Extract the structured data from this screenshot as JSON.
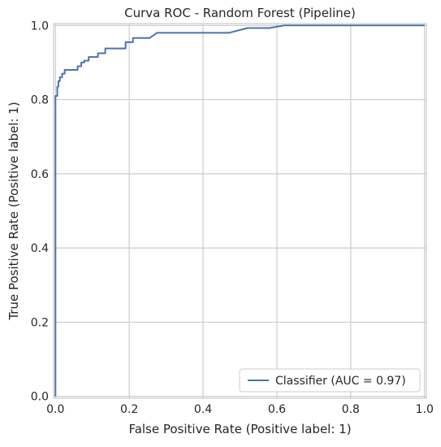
{
  "chart_data": {
    "type": "line",
    "title": "Curva ROC - Random Forest (Pipeline)",
    "xlabel": "False Positive Rate (Positive label: 1)",
    "ylabel": "True Positive Rate (Positive label: 1)",
    "xlim": [
      -0.005,
      1.005
    ],
    "ylim": [
      -0.005,
      1.005
    ],
    "xticks": [
      "0.0",
      "0.2",
      "0.4",
      "0.6",
      "0.8",
      "1.0"
    ],
    "yticks": [
      "0.0",
      "0.2",
      "0.4",
      "0.6",
      "0.8",
      "1.0"
    ],
    "grid": true,
    "legend_position": "lower-right",
    "series": [
      {
        "name": "Classifier (AUC = 0.97)",
        "color": "#4c72b0",
        "x": [
          0.0,
          0.0,
          0.005,
          0.005,
          0.008,
          0.008,
          0.012,
          0.012,
          0.018,
          0.018,
          0.025,
          0.025,
          0.06,
          0.06,
          0.07,
          0.07,
          0.078,
          0.078,
          0.09,
          0.09,
          0.115,
          0.115,
          0.135,
          0.135,
          0.19,
          0.19,
          0.21,
          0.21,
          0.255,
          0.275,
          0.275,
          0.47,
          0.52,
          0.58,
          0.62,
          1.0
        ],
        "y": [
          0.0,
          0.81,
          0.81,
          0.835,
          0.835,
          0.85,
          0.85,
          0.86,
          0.86,
          0.87,
          0.87,
          0.88,
          0.88,
          0.89,
          0.89,
          0.9,
          0.9,
          0.905,
          0.905,
          0.915,
          0.915,
          0.925,
          0.925,
          0.938,
          0.938,
          0.955,
          0.955,
          0.966,
          0.966,
          0.98,
          0.98,
          0.98,
          0.993,
          0.993,
          1.0,
          1.0
        ]
      }
    ]
  }
}
